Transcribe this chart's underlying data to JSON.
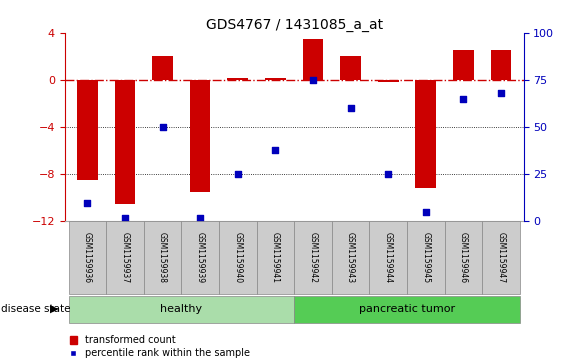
{
  "title": "GDS4767 / 1431085_a_at",
  "samples": [
    "GSM1159936",
    "GSM1159937",
    "GSM1159938",
    "GSM1159939",
    "GSM1159940",
    "GSM1159941",
    "GSM1159942",
    "GSM1159943",
    "GSM1159944",
    "GSM1159945",
    "GSM1159946",
    "GSM1159947"
  ],
  "transformed_count": [
    -8.5,
    -10.5,
    2.0,
    -9.5,
    0.2,
    0.2,
    3.5,
    2.0,
    -0.15,
    -9.2,
    2.5,
    2.5
  ],
  "percentile_rank": [
    10,
    2,
    50,
    2,
    25,
    38,
    75,
    60,
    25,
    5,
    65,
    68
  ],
  "ylim_left": [
    -12,
    4
  ],
  "ylim_right": [
    0,
    100
  ],
  "yticks_left": [
    -12,
    -8,
    -4,
    0,
    4
  ],
  "yticks_right": [
    0,
    25,
    50,
    75,
    100
  ],
  "bar_color": "#cc0000",
  "dot_color": "#0000bb",
  "zero_line_color": "#cc0000",
  "grid_color": "#000000",
  "healthy_color": "#aaddaa",
  "tumor_color": "#55cc55",
  "label_color_left": "#cc0000",
  "label_color_right": "#0000bb",
  "tick_label_bg": "#cccccc",
  "tick_label_edge": "#888888",
  "legend_bar_label": "transformed count",
  "legend_dot_label": "percentile rank within the sample",
  "disease_state_label": "disease state",
  "healthy_label": "healthy",
  "tumor_label": "pancreatic tumor",
  "n_healthy": 6,
  "n_total": 12
}
